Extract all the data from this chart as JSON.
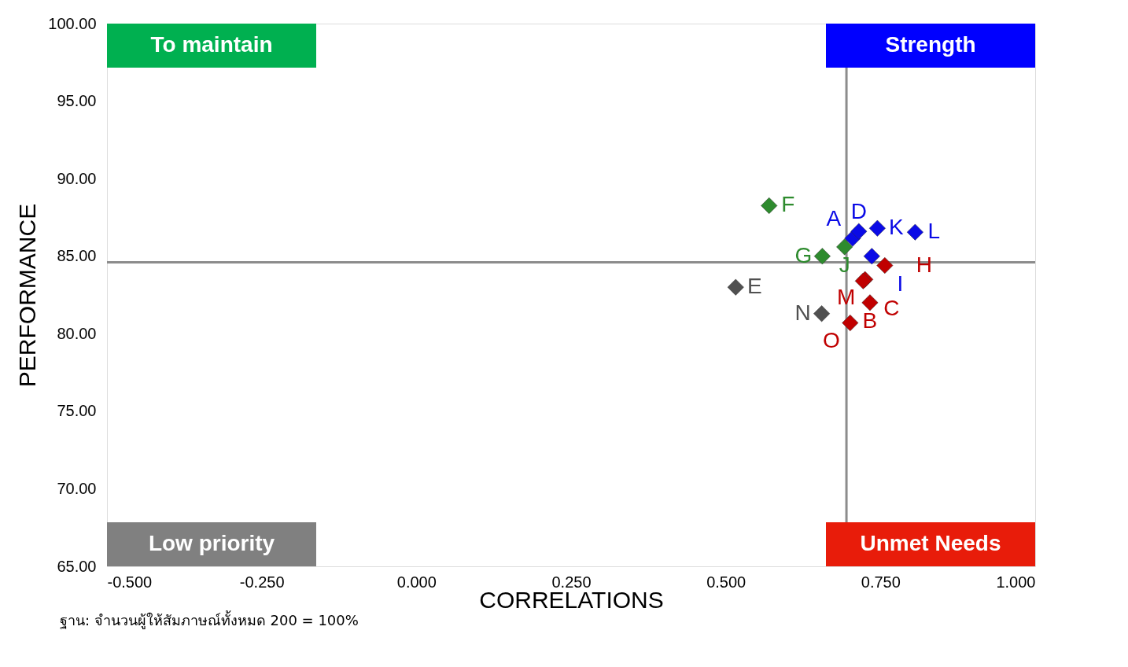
{
  "chart_data": {
    "type": "scatter",
    "xlabel": "CORRELATIONS",
    "ylabel": "PERFORMANCE",
    "xlim": [
      -0.5,
      1.0
    ],
    "ylim": [
      65,
      100
    ],
    "xticks": [
      {
        "value": -0.5,
        "label": "-0.500"
      },
      {
        "value": -0.25,
        "label": "-0.250"
      },
      {
        "value": 0,
        "label": "0.000"
      },
      {
        "value": 0.25,
        "label": "0.250"
      },
      {
        "value": 0.5,
        "label": "0.500"
      },
      {
        "value": 0.75,
        "label": "0.750"
      },
      {
        "value": 1.0,
        "label": "1.000"
      }
    ],
    "yticks": [
      {
        "value": 65,
        "label": "65.00"
      },
      {
        "value": 70,
        "label": "70.00"
      },
      {
        "value": 75,
        "label": "75.00"
      },
      {
        "value": 80,
        "label": "80.00"
      },
      {
        "value": 85,
        "label": "85.00"
      },
      {
        "value": 90,
        "label": "90.00"
      },
      {
        "value": 95,
        "label": "95.00"
      },
      {
        "value": 100,
        "label": "100.00"
      }
    ],
    "grid": false,
    "legend": false,
    "marker": "diamond",
    "series": [
      {
        "color": "#0a0ae6",
        "x": [
          0.705,
          0.715,
          0.745,
          0.806,
          0.736
        ],
        "values": [
          86.15,
          86.6,
          86.8,
          86.55,
          85.0
        ],
        "value_labels": [
          "A",
          "D",
          "K",
          "L",
          "I"
        ]
      },
      {
        "color": "#2e8b2e",
        "x": [
          0.57,
          0.656,
          0.692
        ],
        "values": [
          88.26,
          85.0,
          85.6
        ],
        "value_labels": [
          "F",
          "G",
          "J"
        ]
      },
      {
        "color": "#c00000",
        "x": [
          0.757,
          0.725,
          0.722,
          0.733,
          0.701
        ],
        "values": [
          84.4,
          83.5,
          83.4,
          82.0,
          80.7
        ],
        "value_labels": [
          "H",
          "M",
          "C",
          "B",
          "O"
        ]
      },
      {
        "color": "#505050",
        "x": [
          0.516,
          0.655
        ],
        "values": [
          83.0,
          81.3
        ],
        "value_labels": [
          "E",
          "N"
        ]
      }
    ],
    "ref_lines": [
      {
        "axis": "x",
        "value": 0.695,
        "color": "#8c8c8c"
      },
      {
        "axis": "y",
        "value": 84.6,
        "color": "#8c8c8c"
      }
    ],
    "annotations": [
      "To maintain",
      "Strength",
      "Low priority",
      "Unmet Needs",
      "ฐาน: จำนวนผู้ให้สัมภาษณ์ทั้งหมด 200 = 100%"
    ]
  }
}
